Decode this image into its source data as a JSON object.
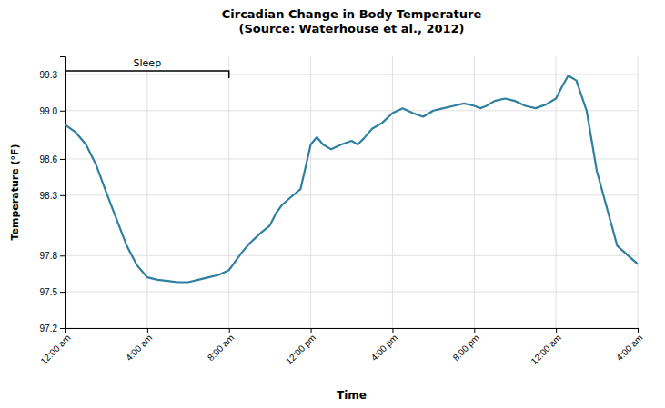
{
  "chart_data": {
    "type": "line",
    "title": "Circadian Change in Body Temperature\n(Source: Waterhouse et al., 2012)",
    "x_label": "Time",
    "y_label": "Temperature (°F)",
    "color": "#2e7fa0",
    "grid": true,
    "xlim": [
      0,
      28
    ],
    "xticks": [
      {
        "value": 0,
        "label": "12:00 am"
      },
      {
        "value": 4,
        "label": "4:00 am"
      },
      {
        "value": 8,
        "label": "8:00 am"
      },
      {
        "value": 12,
        "label": "12:00 pm"
      },
      {
        "value": 16,
        "label": "4:00 pm"
      },
      {
        "value": 20,
        "label": "8:00 pm"
      },
      {
        "value": 24,
        "label": "12:00 am"
      },
      {
        "value": 28,
        "label": "4:00 am"
      }
    ],
    "ylim": [
      97.2,
      99.45
    ],
    "yticks": [
      97.2,
      97.5,
      97.8,
      98.3,
      98.6,
      {
        "value": 99.0,
        "label": "99.0"
      },
      99.3
    ],
    "annotations": [
      {
        "text": "Sleep",
        "x": [
          0,
          8
        ],
        "y": 99.33
      }
    ],
    "x": [
      0,
      0.5,
      1,
      1.5,
      2,
      2.5,
      3,
      3.5,
      4,
      4.5,
      5,
      5.5,
      6,
      6.5,
      7,
      7.5,
      8,
      8.3,
      8.6,
      9,
      9.5,
      10,
      10.3,
      10.6,
      11,
      11.5,
      12,
      12.3,
      12.6,
      13,
      13.5,
      14,
      14.3,
      14.6,
      15,
      15.5,
      16,
      16.5,
      17,
      17.5,
      18,
      18.5,
      19,
      19.5,
      20,
      20.3,
      20.6,
      21,
      21.5,
      22,
      22.5,
      23,
      23.5,
      24,
      24.3,
      24.6,
      25,
      25.5,
      26,
      27,
      28
    ],
    "values": [
      98.88,
      98.82,
      98.72,
      98.55,
      98.32,
      98.1,
      97.88,
      97.72,
      97.62,
      97.6,
      97.59,
      97.58,
      97.58,
      97.6,
      97.62,
      97.64,
      97.68,
      97.75,
      97.82,
      97.9,
      97.98,
      98.05,
      98.15,
      98.22,
      98.28,
      98.35,
      98.72,
      98.78,
      98.72,
      98.68,
      98.72,
      98.75,
      98.72,
      98.77,
      98.85,
      98.9,
      98.98,
      99.02,
      98.98,
      98.95,
      99.0,
      99.02,
      99.04,
      99.06,
      99.04,
      99.02,
      99.04,
      99.08,
      99.1,
      99.08,
      99.04,
      99.02,
      99.05,
      99.1,
      99.2,
      99.29,
      99.25,
      99.0,
      98.5,
      97.88,
      97.73
    ]
  }
}
